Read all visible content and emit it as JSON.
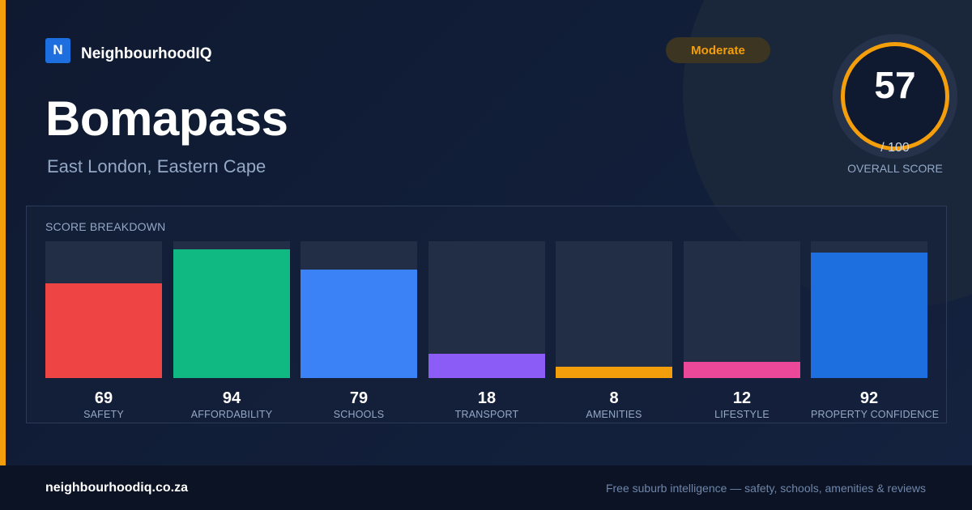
{
  "brand": {
    "logo_letter": "N",
    "name": "NeighbourhoodIQ"
  },
  "suburb": {
    "name": "Bomapass",
    "location": "East London, Eastern Cape"
  },
  "rating_badge": {
    "label": "Moderate",
    "color": "#f59e0b"
  },
  "overall": {
    "score": "57",
    "max": "/ 100",
    "caption": "OVERALL SCORE",
    "ring_color": "#f59e0b"
  },
  "breakdown": {
    "heading": "SCORE BREAKDOWN",
    "items": [
      {
        "value": 69,
        "label": "SAFETY",
        "color": "#ef4444"
      },
      {
        "value": 94,
        "label": "AFFORDABILITY",
        "color": "#10b981"
      },
      {
        "value": 79,
        "label": "SCHOOLS",
        "color": "#3b82f6"
      },
      {
        "value": 18,
        "label": "TRANSPORT",
        "color": "#8b5cf6"
      },
      {
        "value": 8,
        "label": "AMENITIES",
        "color": "#f59e0b"
      },
      {
        "value": 12,
        "label": "LIFESTYLE",
        "color": "#ec4899"
      },
      {
        "value": 92,
        "label": "PROPERTY CONFIDENCE",
        "color": "#1d6fe0"
      }
    ]
  },
  "footer": {
    "domain": "neighbourhoodiq.co.za",
    "tagline": "Free suburb intelligence — safety, schools, amenities & reviews"
  },
  "colors": {
    "accent": "#f59e0b",
    "background": "#111c33",
    "brand": "#1d6fe0"
  }
}
